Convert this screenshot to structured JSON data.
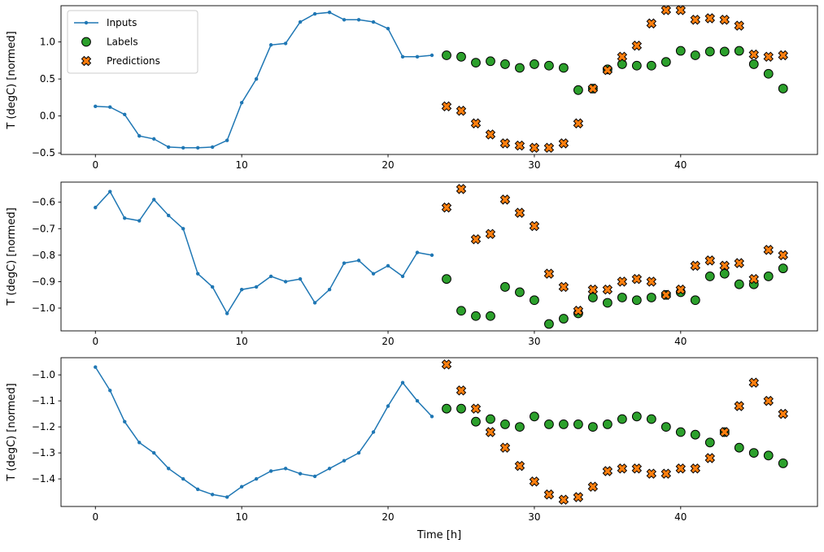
{
  "figure": {
    "background": "#ffffff"
  },
  "legend": {
    "position": "upper-left",
    "items": [
      "Inputs",
      "Labels",
      "Predictions"
    ]
  },
  "colors": {
    "inputs": "#1f77b4",
    "labels": "#2ca02c",
    "predictions": "#ff7f0e",
    "marker_edge": "#000000",
    "legend_border": "#cccccc"
  },
  "chart_data": [
    {
      "type": "line",
      "title": "",
      "ylabel": "T (degC) [normed]",
      "xlabel": "",
      "xlim": [
        -2.35,
        49.35
      ],
      "ylim": [
        -0.52,
        1.49
      ],
      "xticks": [
        0,
        10,
        20,
        30,
        40
      ],
      "xtick_labels": [
        "0",
        "10",
        "20",
        "30",
        "40"
      ],
      "yticks": [
        -0.5,
        0.0,
        0.5,
        1.0
      ],
      "ytick_labels": [
        "−0.5",
        "0.0",
        "0.5",
        "1.0"
      ],
      "grid": false,
      "series": [
        {
          "name": "Inputs",
          "marker": "line-dot",
          "color": "#1f77b4",
          "x_start": 0,
          "x_step": 1,
          "values": [
            0.13,
            0.12,
            0.02,
            -0.27,
            -0.31,
            -0.42,
            -0.43,
            -0.43,
            -0.42,
            -0.33,
            0.18,
            0.5,
            0.96,
            0.98,
            1.27,
            1.38,
            1.4,
            1.3,
            1.3,
            1.27,
            1.18,
            0.8,
            0.8,
            0.82
          ]
        },
        {
          "name": "Labels",
          "marker": "circle",
          "color": "#2ca02c",
          "edge_color": "#000000",
          "x_start": 24,
          "x_step": 1,
          "values": [
            0.82,
            0.8,
            0.72,
            0.74,
            0.7,
            0.65,
            0.7,
            0.68,
            0.65,
            0.35,
            0.37,
            0.63,
            0.7,
            0.68,
            0.68,
            0.73,
            0.88,
            0.82,
            0.87,
            0.87,
            0.88,
            0.7,
            0.57,
            0.37
          ]
        },
        {
          "name": "Predictions",
          "marker": "X",
          "color": "#ff7f0e",
          "edge_color": "#000000",
          "x_start": 24,
          "x_step": 1,
          "values": [
            0.13,
            0.07,
            -0.1,
            -0.25,
            -0.37,
            -0.4,
            -0.43,
            -0.43,
            -0.37,
            -0.1,
            0.37,
            0.62,
            0.8,
            0.95,
            1.25,
            1.43,
            1.43,
            1.3,
            1.32,
            1.3,
            1.22,
            0.83,
            0.8,
            0.82
          ]
        }
      ]
    },
    {
      "type": "line",
      "title": "",
      "ylabel": "T (degC) [normed]",
      "xlabel": "",
      "xlim": [
        -2.35,
        49.35
      ],
      "ylim": [
        -1.086,
        -0.524
      ],
      "xticks": [
        0,
        10,
        20,
        30,
        40
      ],
      "xtick_labels": [
        "0",
        "10",
        "20",
        "30",
        "40"
      ],
      "yticks": [
        -0.6,
        -0.7,
        -0.8,
        -0.9,
        -1.0
      ],
      "ytick_labels": [
        "−0.6",
        "−0.7",
        "−0.8",
        "−0.9",
        "−1.0"
      ],
      "grid": false,
      "series": [
        {
          "name": "Inputs",
          "marker": "line-dot",
          "color": "#1f77b4",
          "x_start": 0,
          "x_step": 1,
          "values": [
            -0.62,
            -0.56,
            -0.66,
            -0.67,
            -0.59,
            -0.65,
            -0.7,
            -0.87,
            -0.92,
            -1.02,
            -0.93,
            -0.92,
            -0.88,
            -0.9,
            -0.89,
            -0.98,
            -0.93,
            -0.83,
            -0.82,
            -0.87,
            -0.84,
            -0.88,
            -0.79,
            -0.8
          ]
        },
        {
          "name": "Labels",
          "marker": "circle",
          "color": "#2ca02c",
          "edge_color": "#000000",
          "x_start": 24,
          "x_step": 1,
          "values": [
            -0.89,
            -1.01,
            -1.03,
            -1.03,
            -0.92,
            -0.94,
            -0.97,
            -1.06,
            -1.04,
            -1.02,
            -0.96,
            -0.98,
            -0.96,
            -0.97,
            -0.96,
            -0.95,
            -0.94,
            -0.97,
            -0.88,
            -0.87,
            -0.91,
            -0.91,
            -0.88,
            -0.85
          ]
        },
        {
          "name": "Predictions",
          "marker": "X",
          "color": "#ff7f0e",
          "edge_color": "#000000",
          "x_start": 24,
          "x_step": 1,
          "values": [
            -0.62,
            -0.55,
            -0.74,
            -0.72,
            -0.59,
            -0.64,
            -0.69,
            -0.87,
            -0.92,
            -1.01,
            -0.93,
            -0.93,
            -0.9,
            -0.89,
            -0.9,
            -0.95,
            -0.93,
            -0.84,
            -0.82,
            -0.84,
            -0.83,
            -0.89,
            -0.78,
            -0.8
          ]
        }
      ]
    },
    {
      "type": "line",
      "title": "",
      "ylabel": "T (degC) [normed]",
      "xlabel": "Time [h]",
      "xlim": [
        -2.35,
        49.35
      ],
      "ylim": [
        -1.506,
        -0.934
      ],
      "xticks": [
        0,
        10,
        20,
        30,
        40
      ],
      "xtick_labels": [
        "0",
        "10",
        "20",
        "30",
        "40"
      ],
      "yticks": [
        -1.0,
        -1.1,
        -1.2,
        -1.3,
        -1.4
      ],
      "ytick_labels": [
        "−1.0",
        "−1.1",
        "−1.2",
        "−1.3",
        "−1.4"
      ],
      "grid": false,
      "series": [
        {
          "name": "Inputs",
          "marker": "line-dot",
          "color": "#1f77b4",
          "x_start": 0,
          "x_step": 1,
          "values": [
            -0.97,
            -1.06,
            -1.18,
            -1.26,
            -1.3,
            -1.36,
            -1.4,
            -1.44,
            -1.46,
            -1.47,
            -1.43,
            -1.4,
            -1.37,
            -1.36,
            -1.38,
            -1.39,
            -1.36,
            -1.33,
            -1.3,
            -1.22,
            -1.12,
            -1.03,
            -1.1,
            -1.16
          ]
        },
        {
          "name": "Labels",
          "marker": "circle",
          "color": "#2ca02c",
          "edge_color": "#000000",
          "x_start": 24,
          "x_step": 1,
          "values": [
            -1.13,
            -1.13,
            -1.18,
            -1.17,
            -1.19,
            -1.2,
            -1.16,
            -1.19,
            -1.19,
            -1.19,
            -1.2,
            -1.19,
            -1.17,
            -1.16,
            -1.17,
            -1.2,
            -1.22,
            -1.23,
            -1.26,
            -1.22,
            -1.28,
            -1.3,
            -1.31,
            -1.34
          ]
        },
        {
          "name": "Predictions",
          "marker": "X",
          "color": "#ff7f0e",
          "edge_color": "#000000",
          "x_start": 24,
          "x_step": 1,
          "values": [
            -0.96,
            -1.06,
            -1.13,
            -1.22,
            -1.28,
            -1.35,
            -1.41,
            -1.46,
            -1.48,
            -1.47,
            -1.43,
            -1.37,
            -1.36,
            -1.36,
            -1.38,
            -1.38,
            -1.36,
            -1.36,
            -1.32,
            -1.22,
            -1.12,
            -1.03,
            -1.1,
            -1.15
          ]
        }
      ]
    }
  ]
}
